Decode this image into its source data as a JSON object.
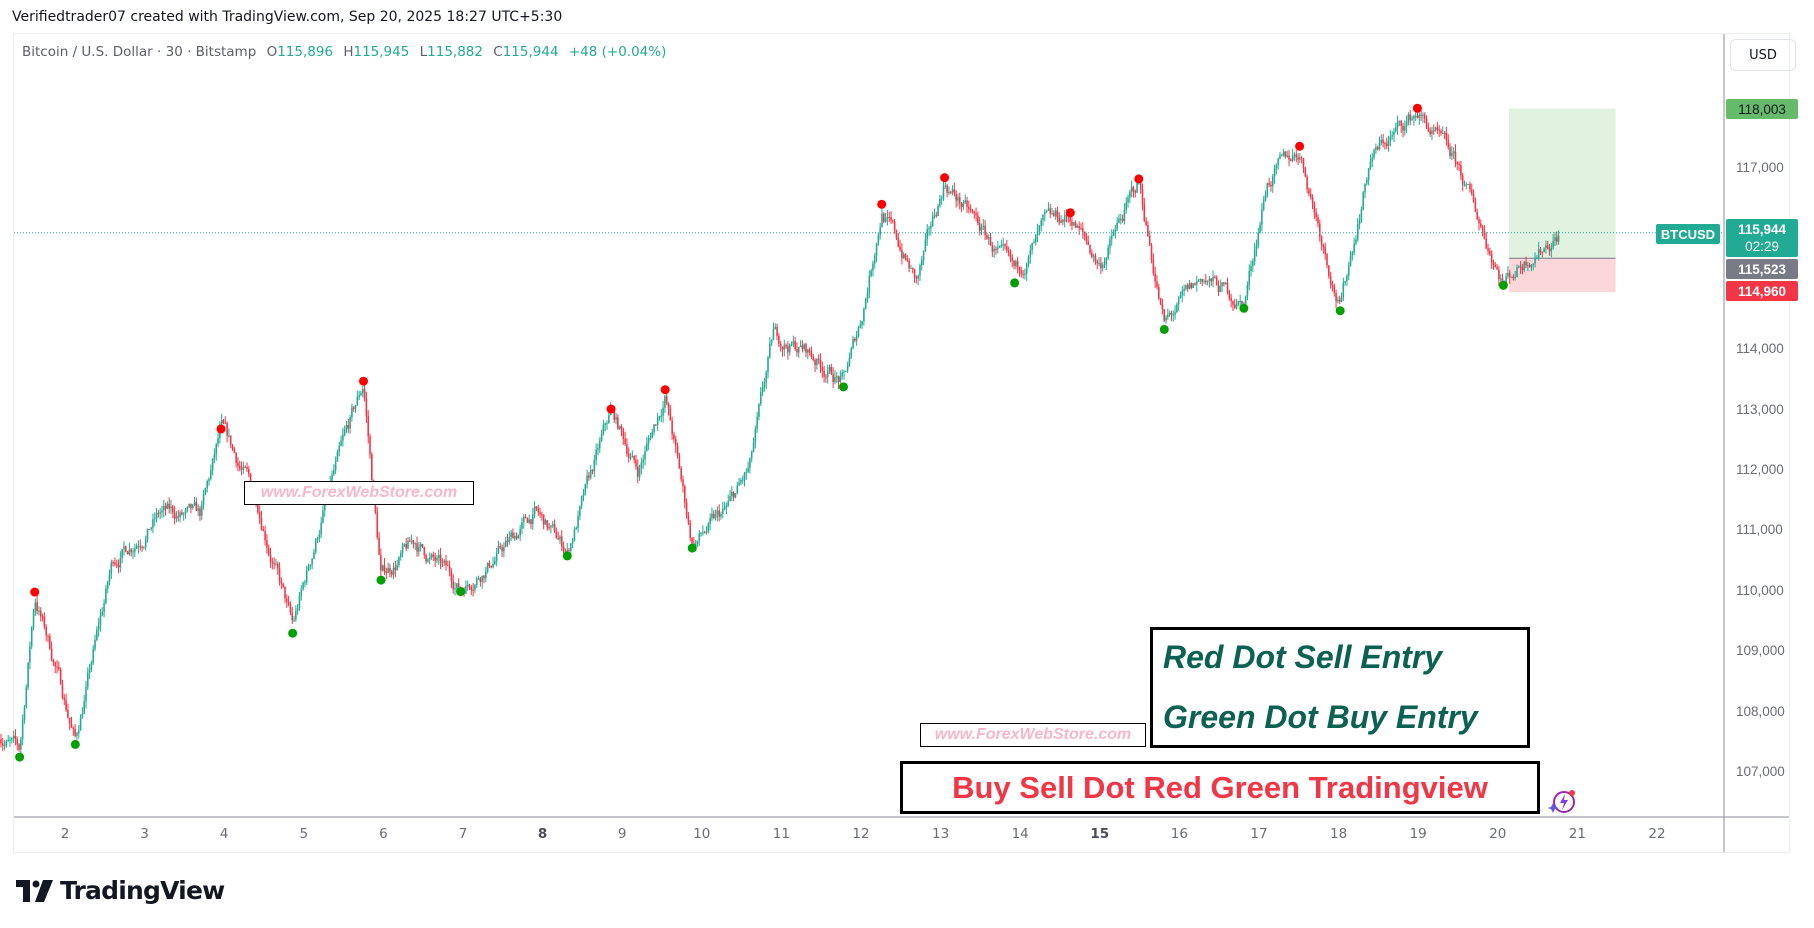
{
  "credit": "Verifiedtrader07 created with TradingView.com, Sep 20, 2025 18:27 UTC+5:30",
  "legend": {
    "symbol": "Bitcoin / U.S. Dollar · 30 · Bitstamp",
    "o_label": "O",
    "o": "115,896",
    "h_label": "H",
    "h": "115,945",
    "l_label": "L",
    "l": "115,882",
    "c_label": "C",
    "c": "115,944",
    "change": "+48 (+0.04%)"
  },
  "currency_button": "USD",
  "price_axis": {
    "ticks": [
      "117,000",
      "114,000",
      "113,000",
      "112,000",
      "111,000",
      "110,000",
      "109,000",
      "108,000",
      "107,000"
    ],
    "ticks_values": [
      117000,
      114000,
      113000,
      112000,
      111000,
      110000,
      109000,
      108000,
      107000
    ],
    "symbol_label": "BTCUSD",
    "last_price": "115,944",
    "countdown": "02:29",
    "target_label": "118,003",
    "entry_label": "115,523",
    "stop_label": "114,960"
  },
  "time_axis": {
    "labels": [
      "2",
      "3",
      "4",
      "5",
      "6",
      "7",
      "8",
      "9",
      "10",
      "11",
      "12",
      "13",
      "14",
      "15",
      "16",
      "17",
      "18",
      "19",
      "20",
      "21",
      "22"
    ],
    "bold": [
      "8",
      "15"
    ]
  },
  "watermark": "www.ForexWebStore.com",
  "info_box": {
    "line1": "Red Dot Sell Entry",
    "line2": "Green Dot Buy Entry"
  },
  "title_box": "Buy Sell Dot Red Green Tradingview",
  "logo_text": "TradingView",
  "colors": {
    "up": "#22ab94",
    "down": "#f23645",
    "sell_dot": "#ff0000",
    "buy_dot": "#00a000",
    "target": "#66bb6a",
    "entry": "#787b86"
  },
  "chart_data": {
    "type": "candlestick",
    "title": "Bitcoin / U.S. Dollar · 30 · Bitstamp",
    "x_unit": "day of September 2025",
    "ylim": [
      106300,
      118900
    ],
    "xlim": [
      1.15,
      22.6
    ],
    "path": [
      [
        1.15,
        107700
      ],
      [
        1.43,
        107330
      ],
      [
        1.62,
        109930
      ],
      [
        1.9,
        108700
      ],
      [
        2.13,
        107540
      ],
      [
        2.6,
        110500
      ],
      [
        3.2,
        111300
      ],
      [
        3.7,
        111200
      ],
      [
        3.96,
        112630
      ],
      [
        4.4,
        111600
      ],
      [
        4.86,
        109380
      ],
      [
        5.3,
        111600
      ],
      [
        5.75,
        113420
      ],
      [
        5.97,
        110260
      ],
      [
        6.4,
        110800
      ],
      [
        6.97,
        110070
      ],
      [
        7.5,
        110700
      ],
      [
        7.9,
        111300
      ],
      [
        8.31,
        110660
      ],
      [
        8.86,
        112960
      ],
      [
        9.2,
        112000
      ],
      [
        9.54,
        113280
      ],
      [
        9.88,
        110790
      ],
      [
        10.3,
        111300
      ],
      [
        10.6,
        112000
      ],
      [
        10.9,
        114200
      ],
      [
        11.3,
        114000
      ],
      [
        11.78,
        113460
      ],
      [
        12.0,
        114500
      ],
      [
        12.26,
        116350
      ],
      [
        12.7,
        115100
      ],
      [
        13.05,
        116790
      ],
      [
        13.5,
        116000
      ],
      [
        13.93,
        115180
      ],
      [
        14.3,
        116000
      ],
      [
        14.63,
        116210
      ],
      [
        15.0,
        115400
      ],
      [
        15.49,
        116770
      ],
      [
        15.81,
        114410
      ],
      [
        16.3,
        115200
      ],
      [
        16.81,
        114760
      ],
      [
        17.1,
        116800
      ],
      [
        17.51,
        117310
      ],
      [
        18.02,
        114720
      ],
      [
        18.4,
        117200
      ],
      [
        18.99,
        117940
      ],
      [
        19.5,
        117000
      ],
      [
        20.07,
        115140
      ],
      [
        20.4,
        115600
      ],
      [
        20.78,
        115944
      ]
    ],
    "sell_dots": [
      [
        1.62,
        109930
      ],
      [
        3.96,
        112630
      ],
      [
        5.75,
        113420
      ],
      [
        8.86,
        112960
      ],
      [
        9.54,
        113280
      ],
      [
        12.26,
        116350
      ],
      [
        13.05,
        116790
      ],
      [
        14.63,
        116210
      ],
      [
        15.49,
        116770
      ],
      [
        17.51,
        117310
      ],
      [
        18.99,
        117940
      ]
    ],
    "buy_dots": [
      [
        1.43,
        107330
      ],
      [
        2.13,
        107540
      ],
      [
        4.86,
        109380
      ],
      [
        5.97,
        110260
      ],
      [
        6.97,
        110070
      ],
      [
        8.31,
        110660
      ],
      [
        9.88,
        110790
      ],
      [
        11.78,
        113460
      ],
      [
        13.93,
        115180
      ],
      [
        15.81,
        114410
      ],
      [
        16.81,
        114760
      ],
      [
        18.02,
        114720
      ],
      [
        20.07,
        115140
      ]
    ],
    "last_price": 115944,
    "long_position": {
      "start_day": 20.14,
      "end_day": 21.48,
      "entry": 115523,
      "target": 118003,
      "stop": 114960
    }
  }
}
